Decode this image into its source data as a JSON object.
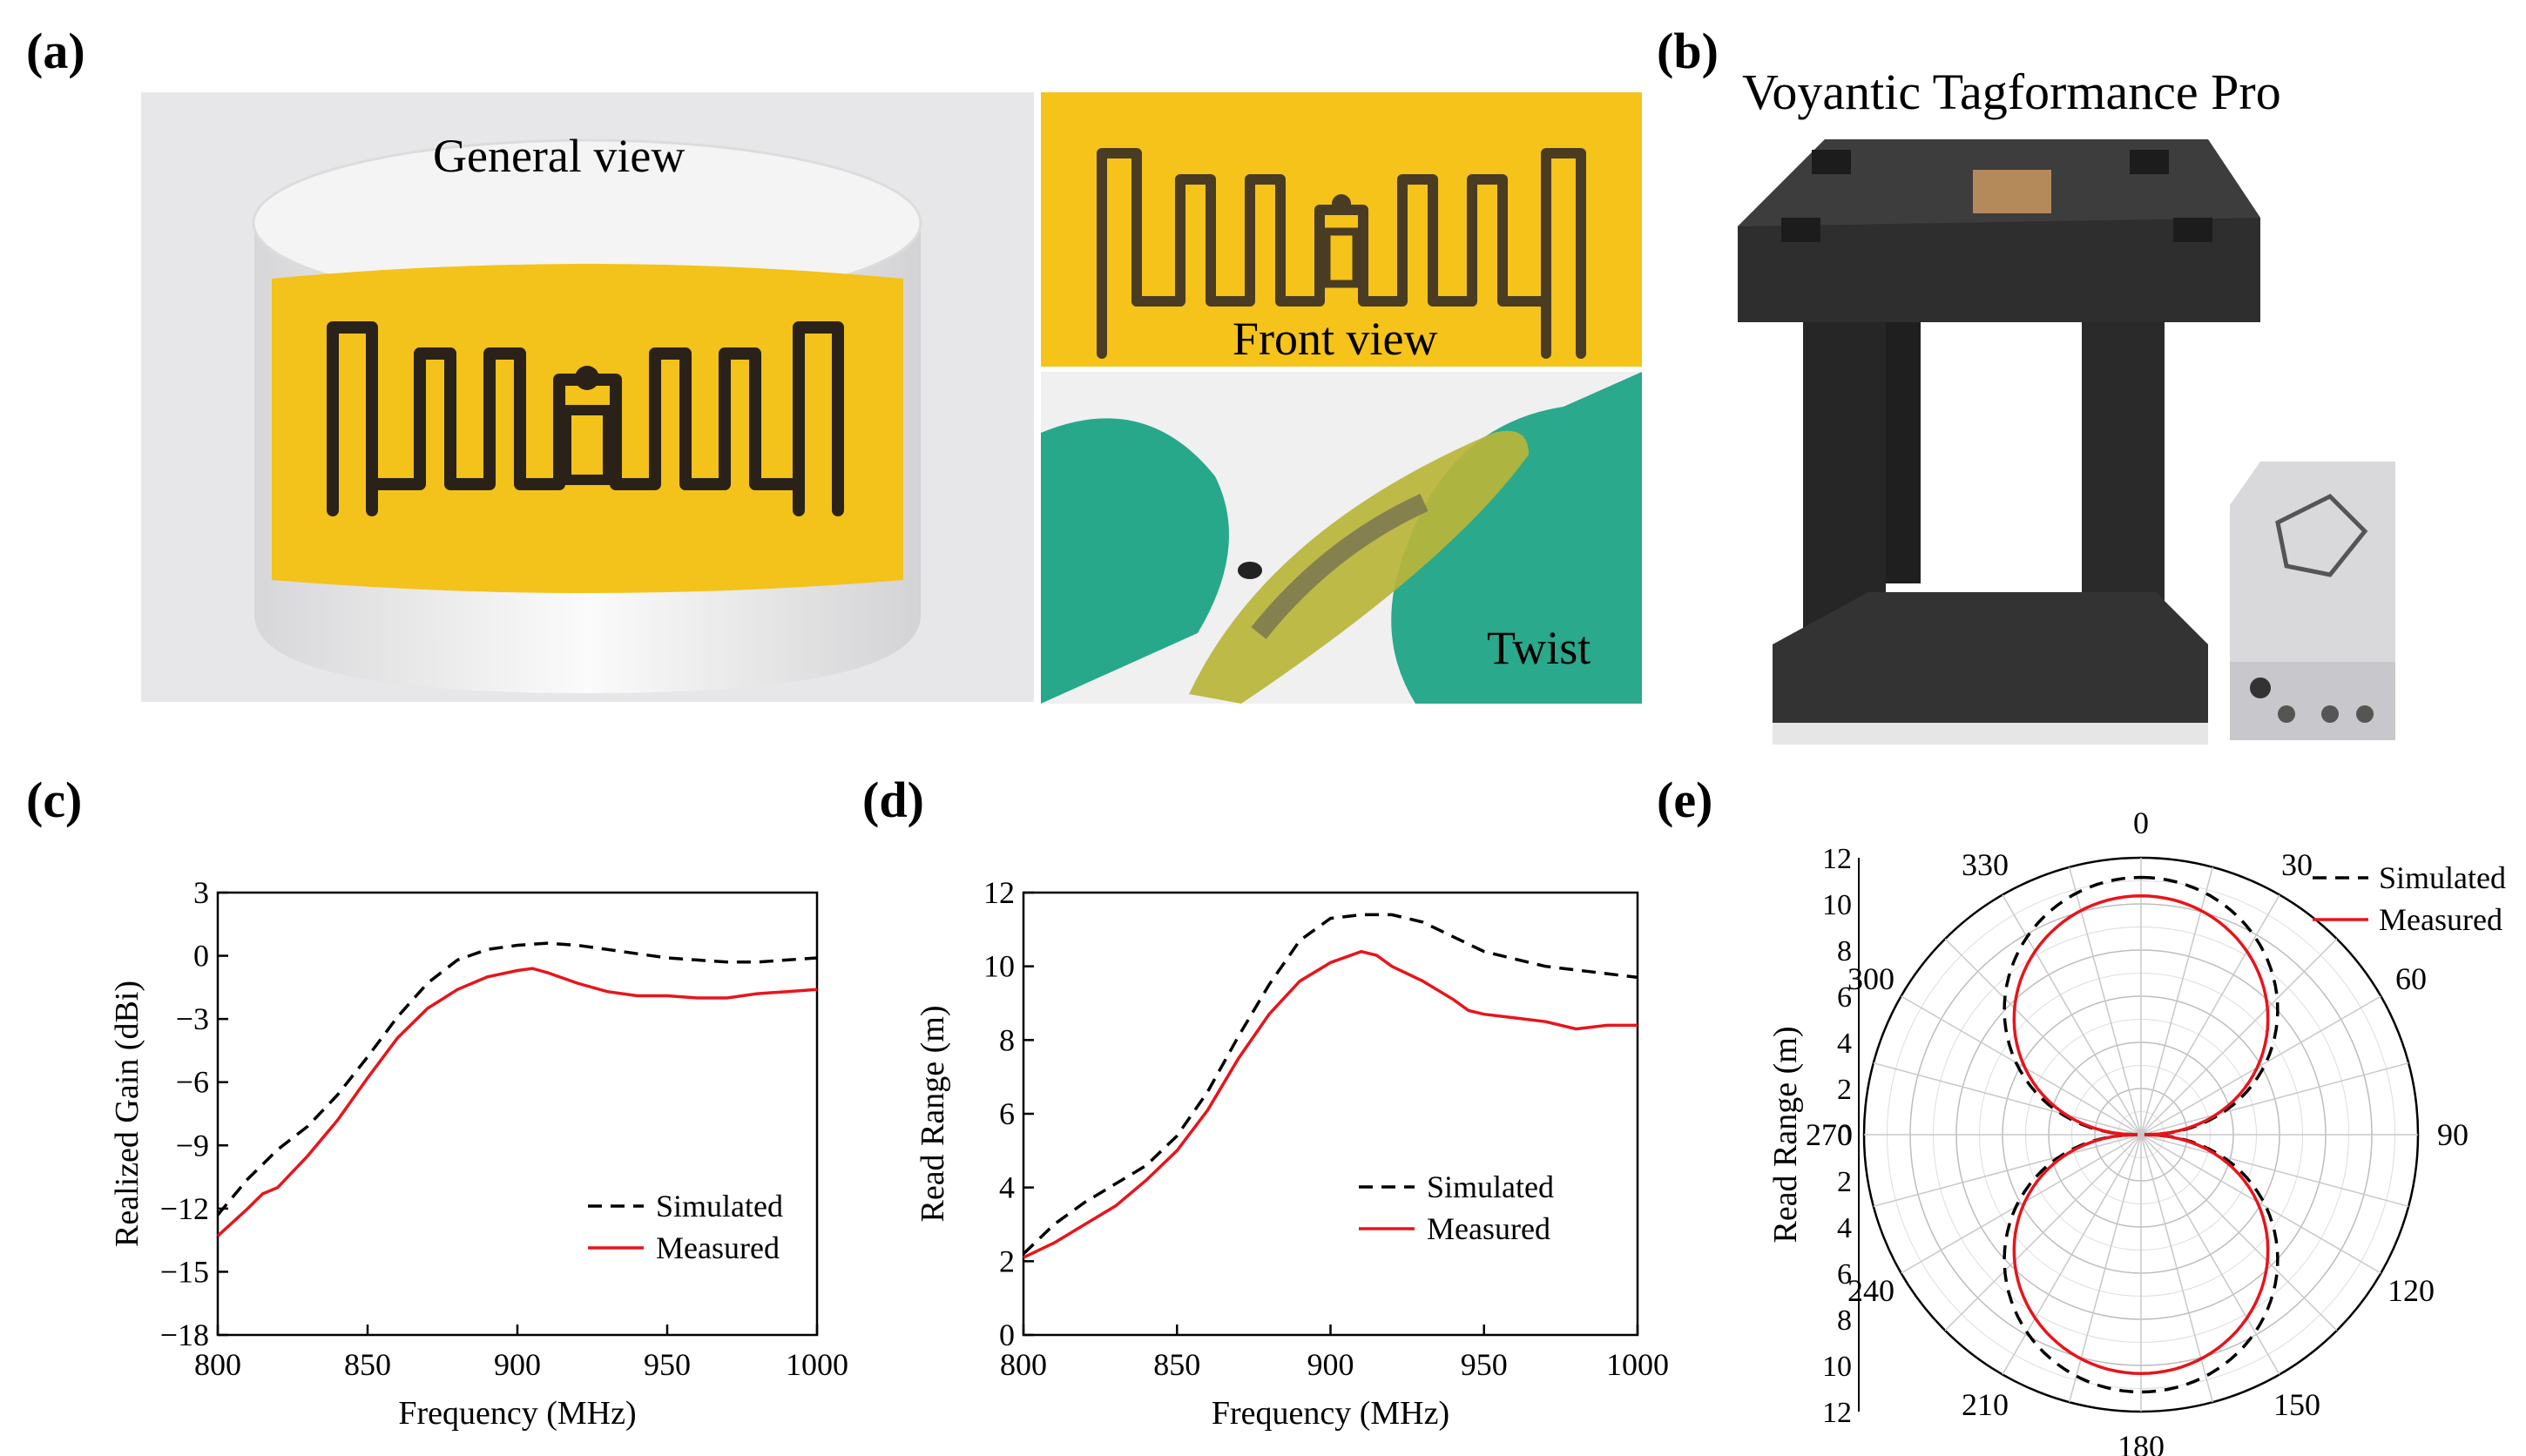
{
  "panels": {
    "a": {
      "label": "(a)",
      "captions": {
        "general": "General view",
        "front": "Front view",
        "twist": "Twist"
      }
    },
    "b": {
      "label": "(b)",
      "title": "Voyantic Tagformance Pro"
    },
    "c": {
      "label": "(c)"
    },
    "d": {
      "label": "(d)"
    },
    "e": {
      "label": "(e)"
    }
  },
  "colors": {
    "simulated": "#000000",
    "measured": "#e8141b",
    "tag_yellow": "#f3c21b",
    "glove": "#26a98a",
    "foam": "#2f2f2f"
  },
  "chart_data": [
    {
      "id": "c",
      "type": "line",
      "xlabel": "Frequency (MHz)",
      "ylabel": "Realized Gain (dBi)",
      "xlim": [
        800,
        1000
      ],
      "ylim": [
        -18,
        3
      ],
      "xticks": [
        800,
        850,
        900,
        950,
        1000
      ],
      "yticks": [
        3,
        0,
        -3,
        -6,
        -9,
        -12,
        -15,
        -18
      ],
      "ytick_labels": [
        "3",
        "0",
        "−3",
        "−6",
        "−9",
        "−12",
        "−15",
        "−18"
      ],
      "legend_position": "lower-right",
      "series": [
        {
          "name": "Simulated",
          "style": "dashed",
          "x": [
            800,
            810,
            820,
            830,
            840,
            850,
            860,
            870,
            880,
            890,
            900,
            910,
            920,
            930,
            940,
            950,
            960,
            970,
            980,
            990,
            1000
          ],
          "y": [
            -12.3,
            -10.6,
            -9.2,
            -8.1,
            -6.6,
            -4.8,
            -2.9,
            -1.3,
            -0.2,
            0.3,
            0.5,
            0.6,
            0.5,
            0.3,
            0.1,
            -0.1,
            -0.2,
            -0.3,
            -0.3,
            -0.2,
            -0.1
          ]
        },
        {
          "name": "Measured",
          "style": "solid",
          "x": [
            800,
            810,
            815,
            820,
            830,
            840,
            850,
            860,
            870,
            880,
            890,
            900,
            905,
            910,
            920,
            930,
            940,
            950,
            960,
            970,
            980,
            990,
            1000
          ],
          "y": [
            -13.3,
            -12.0,
            -11.3,
            -11.0,
            -9.5,
            -7.8,
            -5.8,
            -3.9,
            -2.5,
            -1.6,
            -1.0,
            -0.7,
            -0.6,
            -0.8,
            -1.3,
            -1.7,
            -1.9,
            -1.9,
            -2.0,
            -2.0,
            -1.8,
            -1.7,
            -1.6
          ]
        }
      ]
    },
    {
      "id": "d",
      "type": "line",
      "xlabel": "Frequency (MHz)",
      "ylabel": "Read Range (m)",
      "xlim": [
        800,
        1000
      ],
      "ylim": [
        0,
        12
      ],
      "xticks": [
        800,
        850,
        900,
        950,
        1000
      ],
      "yticks": [
        0,
        2,
        4,
        6,
        8,
        10,
        12
      ],
      "ytick_labels": [
        "0",
        "2",
        "4",
        "6",
        "8",
        "10",
        "12"
      ],
      "legend_position": "lower-right",
      "series": [
        {
          "name": "Simulated",
          "style": "dashed",
          "x": [
            800,
            810,
            820,
            830,
            840,
            850,
            860,
            870,
            880,
            890,
            900,
            910,
            920,
            930,
            940,
            950,
            960,
            970,
            980,
            990,
            1000
          ],
          "y": [
            2.2,
            3.0,
            3.6,
            4.1,
            4.6,
            5.4,
            6.6,
            8.1,
            9.5,
            10.7,
            11.3,
            11.4,
            11.4,
            11.2,
            10.8,
            10.4,
            10.2,
            10.0,
            9.9,
            9.8,
            9.7
          ]
        },
        {
          "name": "Measured",
          "style": "solid",
          "x": [
            800,
            810,
            820,
            830,
            840,
            850,
            860,
            870,
            880,
            890,
            900,
            910,
            915,
            920,
            930,
            940,
            945,
            950,
            960,
            970,
            980,
            990,
            1000
          ],
          "y": [
            2.1,
            2.5,
            3.0,
            3.5,
            4.2,
            5.0,
            6.1,
            7.5,
            8.7,
            9.6,
            10.1,
            10.4,
            10.3,
            10.0,
            9.6,
            9.1,
            8.8,
            8.7,
            8.6,
            8.5,
            8.3,
            8.4,
            8.4
          ]
        }
      ]
    },
    {
      "id": "e",
      "type": "polar",
      "ylabel": "Read Range (m)",
      "rlim": [
        0,
        12
      ],
      "rticks": [
        0,
        2,
        4,
        6,
        8,
        10,
        12
      ],
      "angle_ticks": [
        0,
        30,
        60,
        90,
        120,
        150,
        180,
        210,
        240,
        270,
        300,
        330
      ],
      "legend_position": "top-right",
      "series": [
        {
          "name": "Simulated",
          "style": "dashed",
          "peak": 11.0
        },
        {
          "name": "Measured",
          "style": "solid",
          "peak": 10.2
        }
      ]
    }
  ]
}
